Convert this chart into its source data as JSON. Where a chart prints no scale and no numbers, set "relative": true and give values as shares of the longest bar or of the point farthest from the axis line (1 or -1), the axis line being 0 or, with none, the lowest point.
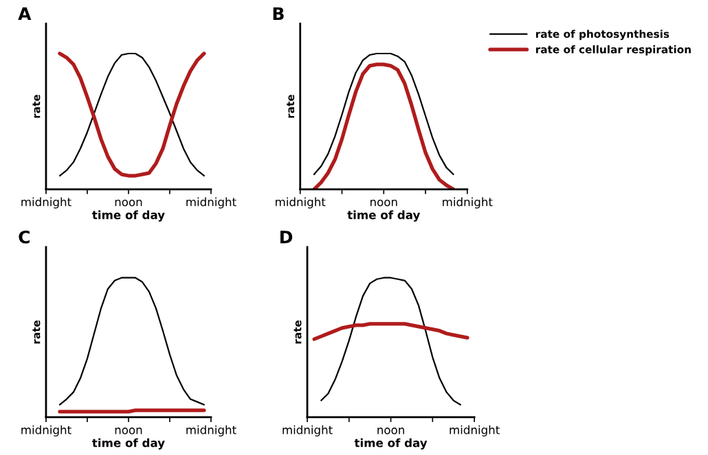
{
  "chart_data": [
    {
      "type": "line",
      "title": "A",
      "xlabel": "time of day",
      "ylabel": "rate",
      "relative": true,
      "categories": [
        "midnight",
        null,
        null,
        null,
        null,
        null,
        null,
        null,
        null,
        null,
        null,
        null,
        "noon",
        null,
        null,
        null,
        null,
        null,
        null,
        null,
        null,
        null,
        null,
        null,
        "midnight"
      ],
      "tick_labels": "x",
      "grid": false,
      "legend": false,
      "series": [
        {
          "color": "#000000",
          "values": [
            null,
            null,
            0.1,
            0.14,
            0.2,
            0.3,
            0.42,
            0.56,
            0.7,
            0.83,
            0.93,
            0.99,
            1.0,
            1.0,
            0.97,
            0.9,
            0.8,
            0.68,
            0.56,
            0.43,
            0.3,
            0.2,
            0.14,
            0.1,
            null
          ]
        },
        {
          "color": "#b01c1c",
          "values": [
            null,
            null,
            1.0,
            0.97,
            0.92,
            0.82,
            0.68,
            0.53,
            0.37,
            0.24,
            0.15,
            0.11,
            0.1,
            0.1,
            0.11,
            0.12,
            0.19,
            0.3,
            0.47,
            0.63,
            0.76,
            0.87,
            0.95,
            1.0,
            null
          ]
        }
      ]
    },
    {
      "type": "line",
      "title": "B",
      "xlabel": "time of day",
      "ylabel": "rate",
      "relative": true,
      "categories": [
        "midnight",
        null,
        null,
        null,
        null,
        null,
        null,
        null,
        null,
        null,
        null,
        null,
        "noon",
        null,
        null,
        null,
        null,
        null,
        null,
        null,
        null,
        null,
        null,
        null,
        "midnight"
      ],
      "tick_labels": "x",
      "grid": false,
      "legend": "right",
      "series": [
        {
          "name": "rate of photosynthesis",
          "color": "#000000",
          "values": [
            null,
            null,
            0.11,
            0.17,
            0.26,
            0.39,
            0.55,
            0.72,
            0.86,
            0.95,
            0.99,
            1.0,
            1.0,
            1.0,
            0.98,
            0.94,
            0.84,
            0.7,
            0.54,
            0.38,
            0.25,
            0.16,
            0.11,
            null,
            null
          ]
        },
        {
          "name": "rate of cellular respiration",
          "color": "#b01c1c",
          "values": [
            null,
            null,
            0,
            0.05,
            0.12,
            0.22,
            0.37,
            0.55,
            0.72,
            0.85,
            0.91,
            0.92,
            0.92,
            0.91,
            0.88,
            0.78,
            0.62,
            0.44,
            0.27,
            0.15,
            0.07,
            0.03,
            0,
            null,
            null
          ]
        }
      ]
    },
    {
      "type": "line",
      "title": "C",
      "xlabel": "time of day",
      "ylabel": "rate",
      "relative": true,
      "categories": [
        "midnight",
        null,
        null,
        null,
        null,
        null,
        null,
        null,
        null,
        null,
        null,
        null,
        "noon",
        null,
        null,
        null,
        null,
        null,
        null,
        null,
        null,
        null,
        null,
        null,
        "midnight"
      ],
      "tick_labels": "x",
      "grid": false,
      "legend": false,
      "series": [
        {
          "color": "#000000",
          "values": [
            null,
            null,
            0.09,
            0.13,
            0.18,
            0.28,
            0.42,
            0.6,
            0.78,
            0.92,
            0.98,
            1.0,
            1.0,
            1.0,
            0.97,
            0.9,
            0.78,
            0.62,
            0.45,
            0.3,
            0.2,
            0.13,
            0.11,
            0.09,
            null
          ]
        },
        {
          "color": "#b01c1c",
          "values": [
            null,
            null,
            0.04,
            0.04,
            0.04,
            0.04,
            0.04,
            0.04,
            0.04,
            0.04,
            0.04,
            0.04,
            0.04,
            0.05,
            0.05,
            0.05,
            0.05,
            0.05,
            0.05,
            0.05,
            0.05,
            0.05,
            0.05,
            0.05,
            null
          ]
        }
      ]
    },
    {
      "type": "line",
      "title": "D",
      "xlabel": "time of day",
      "ylabel": "rate",
      "relative": true,
      "categories": [
        "midnight",
        null,
        null,
        null,
        null,
        null,
        null,
        null,
        null,
        null,
        null,
        null,
        "noon",
        null,
        null,
        null,
        null,
        null,
        null,
        null,
        null,
        null,
        null,
        null,
        "midnight"
      ],
      "tick_labels": "x",
      "grid": false,
      "legend": false,
      "series": [
        {
          "color": "#000000",
          "values": [
            null,
            null,
            0.12,
            0.17,
            0.27,
            0.4,
            0.55,
            0.72,
            0.87,
            0.96,
            0.99,
            1.0,
            1.0,
            0.99,
            0.98,
            0.92,
            0.8,
            0.62,
            0.43,
            0.28,
            0.18,
            0.12,
            0.09,
            null,
            null
          ]
        },
        {
          "color": "#b01c1c",
          "values": [
            null,
            0.56,
            0.58,
            0.6,
            0.62,
            0.64,
            0.65,
            0.66,
            0.66,
            0.67,
            0.67,
            0.67,
            0.67,
            0.67,
            0.67,
            0.66,
            0.65,
            0.64,
            0.63,
            0.62,
            0.6,
            0.59,
            0.58,
            0.57,
            null
          ]
        }
      ]
    }
  ]
}
